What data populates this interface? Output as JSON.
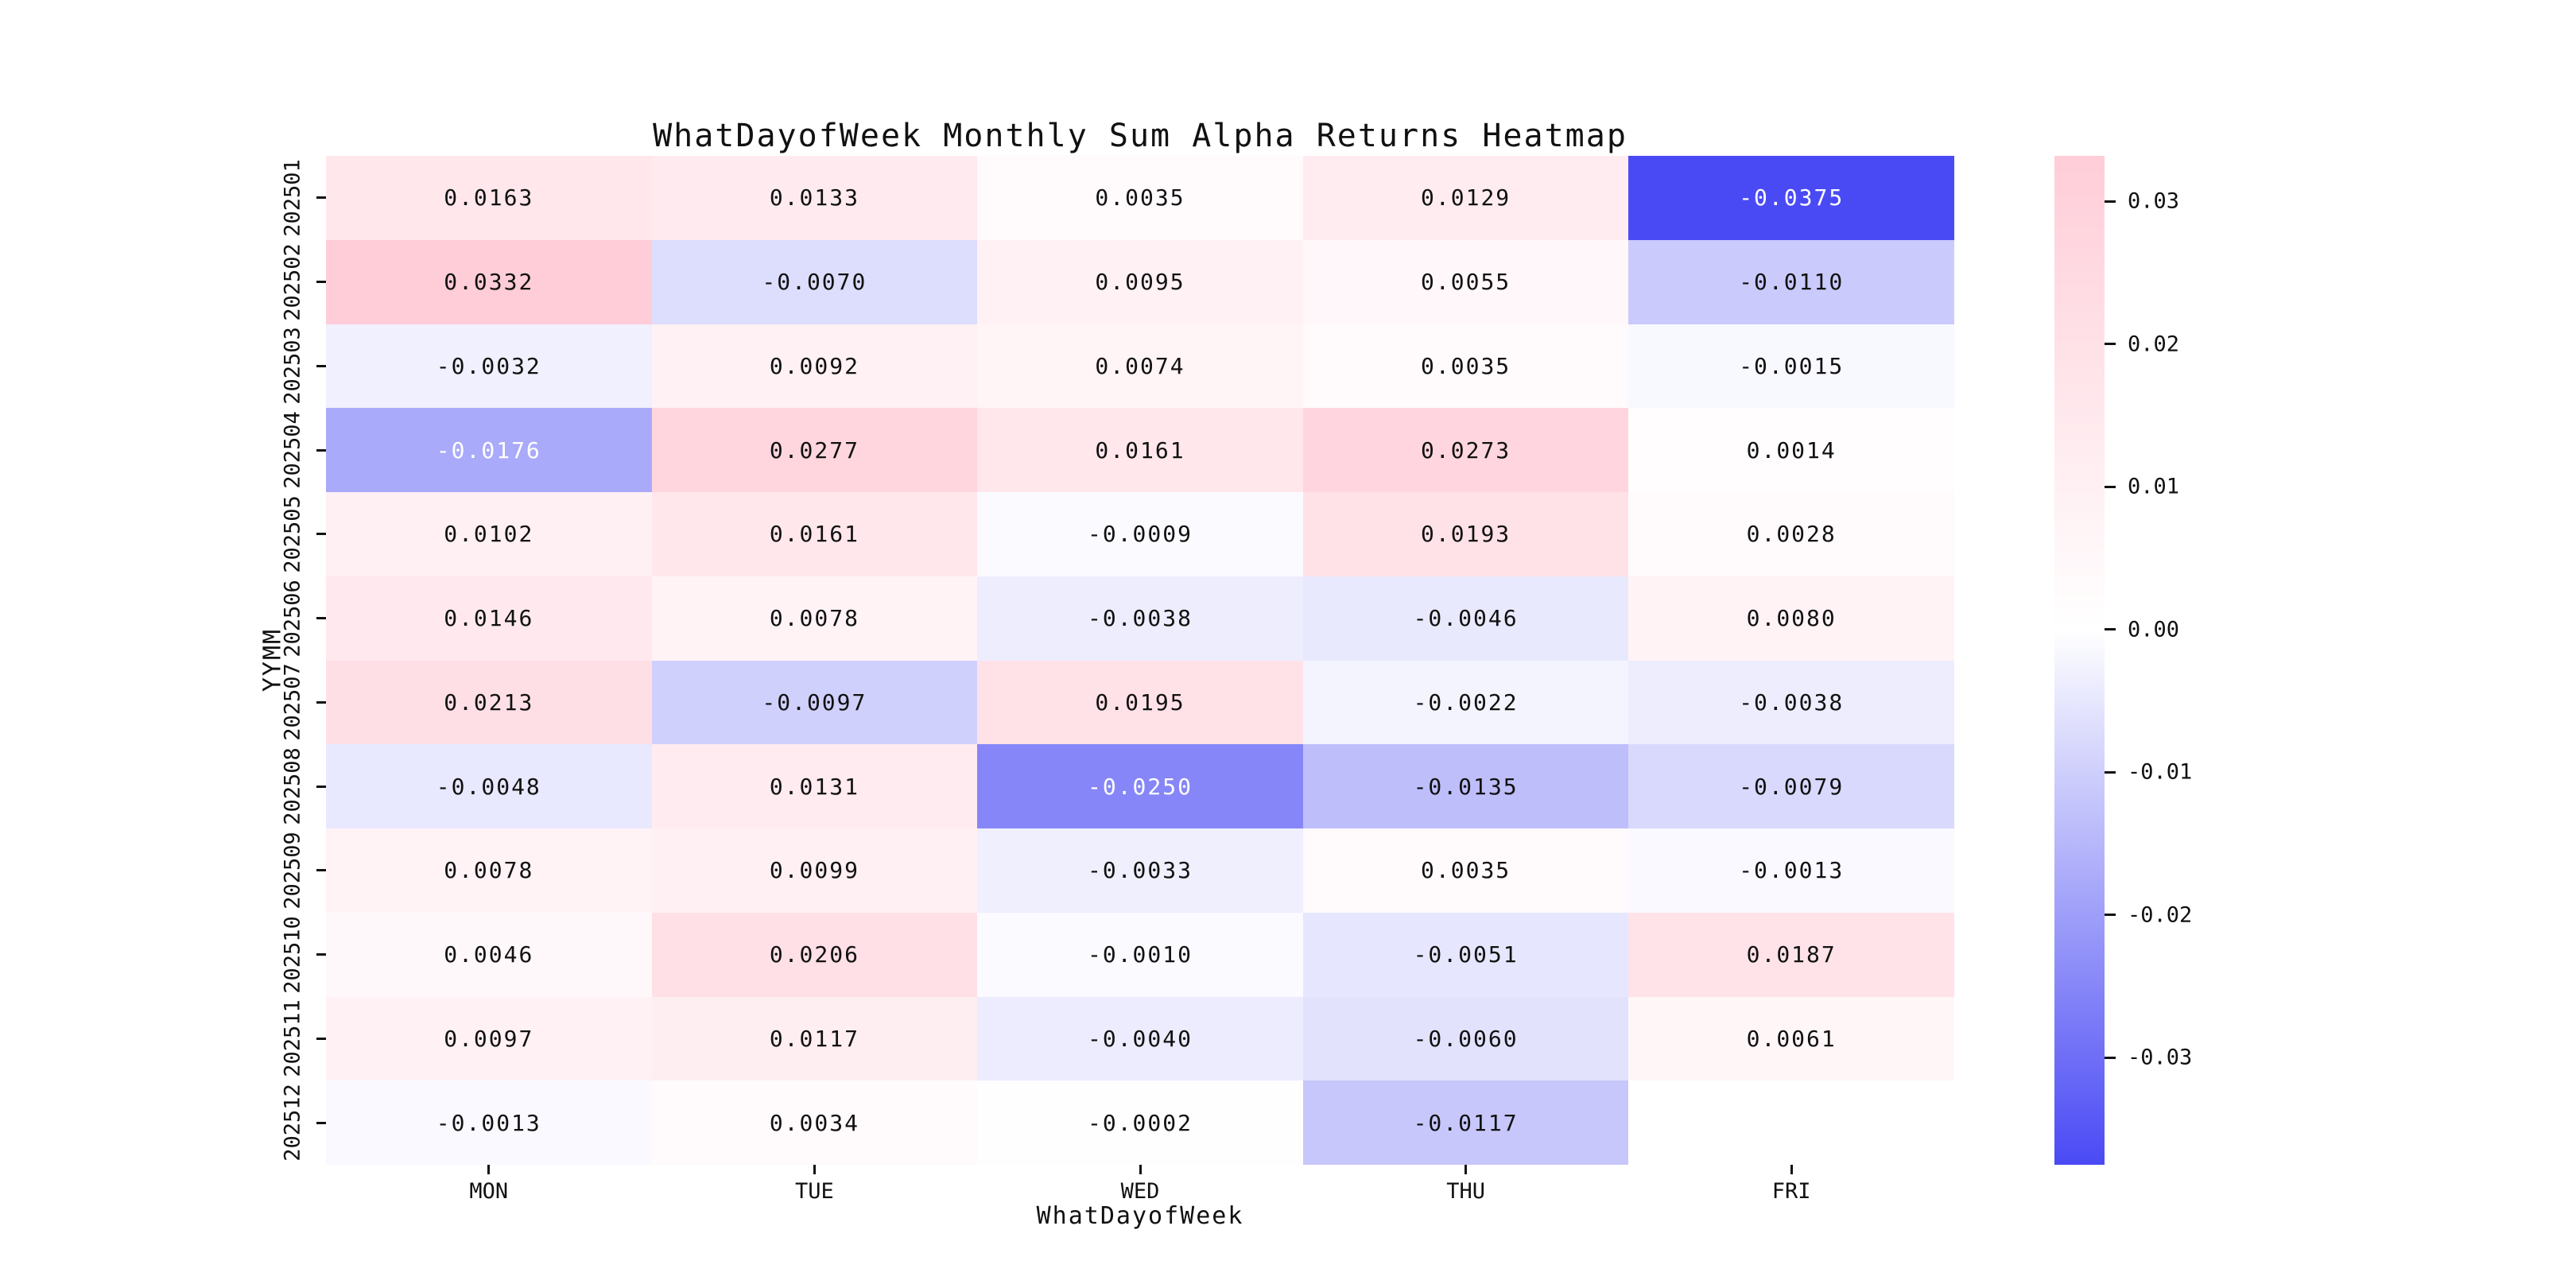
{
  "chart_data": {
    "type": "heatmap",
    "title": "WhatDayofWeek Monthly Sum Alpha Returns Heatmap",
    "xlabel": "WhatDayofWeek",
    "ylabel": "YYMM",
    "x_categories": [
      "MON",
      "TUE",
      "WED",
      "THU",
      "FRI"
    ],
    "y_categories": [
      "202501",
      "202502",
      "202503",
      "202504",
      "202505",
      "202506",
      "202507",
      "202508",
      "202509",
      "202510",
      "202511",
      "202512"
    ],
    "values": [
      [
        0.0163,
        0.0133,
        0.0035,
        0.0129,
        -0.0375
      ],
      [
        0.0332,
        -0.007,
        0.0095,
        0.0055,
        -0.011
      ],
      [
        -0.0032,
        0.0092,
        0.0074,
        0.0035,
        -0.0015
      ],
      [
        -0.0176,
        0.0277,
        0.0161,
        0.0273,
        0.0014
      ],
      [
        0.0102,
        0.0161,
        -0.0009,
        0.0193,
        0.0028
      ],
      [
        0.0146,
        0.0078,
        -0.0038,
        -0.0046,
        0.008
      ],
      [
        0.0213,
        -0.0097,
        0.0195,
        -0.0022,
        -0.0038
      ],
      [
        -0.0048,
        0.0131,
        -0.025,
        -0.0135,
        -0.0079
      ],
      [
        0.0078,
        0.0099,
        -0.0033,
        0.0035,
        -0.0013
      ],
      [
        0.0046,
        0.0206,
        -0.001,
        -0.0051,
        0.0187
      ],
      [
        0.0097,
        0.0117,
        -0.004,
        -0.006,
        0.0061
      ],
      [
        -0.0013,
        0.0034,
        -0.0002,
        -0.0117,
        null
      ]
    ],
    "value_decimals": 4,
    "vmin": -0.0375,
    "vmax": 0.0332,
    "colorbar_ticks": [
      0.03,
      0.02,
      0.01,
      0.0,
      -0.01,
      -0.02,
      -0.03
    ],
    "colorbar_tick_labels": [
      "0.03",
      "0.02",
      "0.01",
      "0.00",
      "-0.01",
      "-0.02",
      "-0.03"
    ],
    "colormap": {
      "positive_end": "#ffc7d3",
      "zero": "#ffffff",
      "negative_end": "#4a4af5",
      "scale_abs": 0.0375,
      "missing": "#ffffff"
    },
    "annotation_text_dark": "#111111",
    "annotation_text_light": "#ffffff",
    "legend_position": "right-colorbar",
    "grid": false
  }
}
